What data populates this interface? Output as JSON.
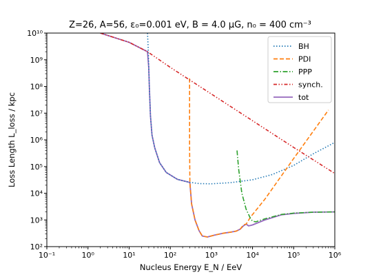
{
  "chart_data": {
    "type": "line",
    "title": "Z=26, A=56, ε₀=0.001 eV, B = 4.0 μG, n₀ = 400 cm⁻³",
    "xlabel": "Nucleus Energy E_N / EeV",
    "ylabel": "Loss Length L_loss / kpc",
    "xscale": "log",
    "yscale": "log",
    "xlim": [
      0.1,
      1000000
    ],
    "ylim": [
      100,
      10000000000
    ],
    "grid": false,
    "legend_position": "top-right",
    "x_ticks": [
      0.1,
      1,
      10,
      100,
      1000,
      10000,
      100000,
      1000000
    ],
    "x_tick_labels": [
      "10⁻¹",
      "10⁰",
      "10¹",
      "10²",
      "10³",
      "10⁴",
      "10⁵",
      "10⁶"
    ],
    "y_ticks": [
      100,
      1000,
      10000,
      100000,
      1000000,
      10000000,
      100000000,
      1000000000,
      10000000000
    ],
    "y_tick_labels": [
      "10²",
      "10³",
      "10⁴",
      "10⁵",
      "10⁶",
      "10⁷",
      "10⁸",
      "10⁹",
      "10¹⁰"
    ],
    "series": [
      {
        "name": "BH",
        "color": "#1f77b4",
        "dash": "dotted",
        "points": [
          [
            28,
            10000000000
          ],
          [
            29,
            3000000000
          ],
          [
            30,
            600000000
          ],
          [
            31,
            100000000
          ],
          [
            33,
            8000000
          ],
          [
            36,
            1500000
          ],
          [
            42,
            500000
          ],
          [
            55,
            140000
          ],
          [
            80,
            60000
          ],
          [
            150,
            33000
          ],
          [
            280,
            26000
          ],
          [
            500,
            23000
          ],
          [
            1000,
            22500
          ],
          [
            3000,
            25000
          ],
          [
            10000,
            32000
          ],
          [
            30000,
            50000
          ],
          [
            100000,
            110000
          ],
          [
            300000,
            300000
          ],
          [
            1000000,
            800000
          ]
        ]
      },
      {
        "name": "PDI",
        "color": "#ff7f0e",
        "dash": "dashed",
        "points": [
          [
            295,
            200000000
          ],
          [
            295,
            600000
          ],
          [
            300,
            25000
          ],
          [
            330,
            4000
          ],
          [
            400,
            1000
          ],
          [
            500,
            400
          ],
          [
            600,
            250
          ],
          [
            800,
            230
          ],
          [
            1200,
            270
          ],
          [
            2000,
            320
          ],
          [
            3000,
            350
          ],
          [
            4000,
            380
          ],
          [
            5000,
            450
          ],
          [
            6000,
            650
          ],
          [
            7000,
            700
          ],
          [
            9000,
            1300
          ],
          [
            20000,
            6000
          ],
          [
            100000,
            200000
          ],
          [
            700000,
            13000000
          ]
        ]
      },
      {
        "name": "PPP",
        "color": "#2ca02c",
        "dash": "dashdot",
        "points": [
          [
            4200,
            400000
          ],
          [
            4600,
            80000
          ],
          [
            5500,
            10000
          ],
          [
            7000,
            2500
          ],
          [
            9000,
            1100
          ],
          [
            10000,
            900
          ],
          [
            12000,
            850
          ],
          [
            20000,
            1100
          ],
          [
            50000,
            1600
          ],
          [
            100000,
            1800
          ],
          [
            300000,
            1950
          ],
          [
            1000000,
            2000
          ]
        ]
      },
      {
        "name": "synch.",
        "color": "#d62728",
        "dash": "dashdotdot",
        "points": [
          [
            2,
            10000000000
          ],
          [
            10,
            4500000000
          ],
          [
            28,
            2000000000
          ],
          [
            100,
            520000000
          ],
          [
            1000,
            52000000
          ],
          [
            10000,
            5200000
          ],
          [
            100000,
            520000
          ],
          [
            1000000,
            55000
          ]
        ]
      },
      {
        "name": "tot",
        "color": "#9467bd",
        "dash": "solid",
        "points": [
          [
            2,
            10000000000
          ],
          [
            10,
            4500000000
          ],
          [
            28,
            2000000000
          ],
          [
            30,
            500000000
          ],
          [
            31,
            100000000
          ],
          [
            33,
            8000000
          ],
          [
            36,
            1500000
          ],
          [
            42,
            500000
          ],
          [
            55,
            140000
          ],
          [
            80,
            60000
          ],
          [
            150,
            33000
          ],
          [
            280,
            26000
          ],
          [
            300,
            25000
          ],
          [
            330,
            4000
          ],
          [
            400,
            1000
          ],
          [
            500,
            400
          ],
          [
            600,
            250
          ],
          [
            800,
            230
          ],
          [
            1200,
            270
          ],
          [
            2000,
            320
          ],
          [
            3000,
            350
          ],
          [
            4000,
            380
          ],
          [
            5000,
            450
          ],
          [
            6000,
            600
          ],
          [
            7000,
            700
          ],
          [
            8000,
            600
          ],
          [
            9000,
            620
          ],
          [
            10000,
            650
          ],
          [
            20000,
            1000
          ],
          [
            50000,
            1550
          ],
          [
            100000,
            1750
          ],
          [
            300000,
            1950
          ],
          [
            1000000,
            2000
          ]
        ]
      }
    ]
  }
}
